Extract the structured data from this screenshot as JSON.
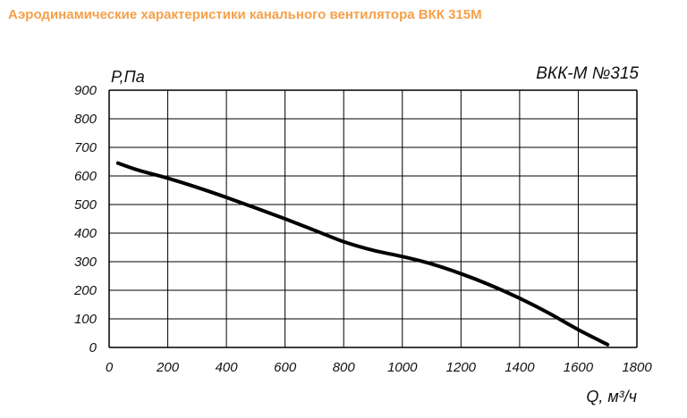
{
  "header": {
    "title": "Аэродинамические характеристики канального вентилятора ВКК 315М"
  },
  "colors": {
    "title": "#f5a04a",
    "curve": "#000000",
    "grid": "#000000"
  },
  "chart_data": {
    "type": "line",
    "title": "ВКК-М №315",
    "xlabel": "Q, м³/ч",
    "ylabel": "P,Па",
    "xlim": [
      0,
      1800
    ],
    "ylim": [
      0,
      900
    ],
    "xticks": [
      "0",
      "200",
      "400",
      "600",
      "800",
      "1000",
      "1200",
      "1400",
      "1600",
      "1800"
    ],
    "yticks": [
      "0",
      "100",
      "200",
      "300",
      "400",
      "500",
      "600",
      "700",
      "800",
      "900"
    ],
    "grid": true,
    "series": [
      {
        "x": [
          30,
          100,
          200,
          300,
          400,
          500,
          600,
          700,
          800,
          900,
          1000,
          1100,
          1200,
          1300,
          1400,
          1500,
          1600,
          1700
        ],
        "y": [
          645,
          620,
          592,
          560,
          525,
          488,
          450,
          410,
          370,
          340,
          318,
          292,
          258,
          218,
          172,
          120,
          62,
          10
        ]
      }
    ]
  }
}
